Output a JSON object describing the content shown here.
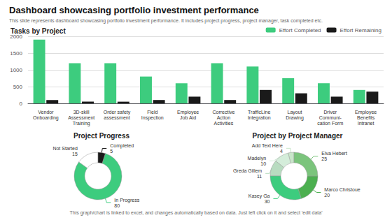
{
  "title": "Dashboard showcasing portfolio investment performance",
  "subtitle": "This slide represents dashboard showcasing portfolio investment performance. It includes project progress, project manager, task completed etc.",
  "annotations": [
    "This graph/chart is linked to excel, and changes automatically based on data. Just left click on it and select 'edit data'"
  ],
  "chart_data": [
    {
      "type": "pie",
      "title": "Project Progress",
      "categories": [
        "Not Started",
        "In Progress",
        "Completed"
      ],
      "values": [
        15,
        80,
        5
      ],
      "colors": [
        "#ffffff",
        "#3dcc7e",
        "#1a1a1a"
      ],
      "data_labels": true
    },
    {
      "type": "bar",
      "title": "Tasks by Project",
      "categories": [
        "Vendor\nOnboarding",
        "3D-skill\nAssessment\nTraining",
        "Order safety\nassessment",
        "Field\nInspection",
        "Employee\nJob Aid",
        "Corrective\nAction\nActivities",
        "TrafficLine\nIntegration",
        "Layout\nDrawing",
        "Driver\nCommuni-\ncation Form",
        "Employee\nBenefits\nIntranet"
      ],
      "series": [
        {
          "name": "Effort Completed",
          "color": "#3dcc7e",
          "values": [
            1900,
            1200,
            1200,
            800,
            600,
            1200,
            1100,
            750,
            600,
            400
          ]
        },
        {
          "name": "Effort Remaining",
          "color": "#1a1a1a",
          "values": [
            100,
            50,
            50,
            100,
            200,
            100,
            400,
            300,
            200,
            350
          ]
        }
      ],
      "ylim": [
        0,
        2000
      ],
      "yticks": [
        0,
        500,
        1000,
        1500,
        2000
      ],
      "grid": true,
      "legend": "upper right"
    },
    {
      "type": "pie",
      "title": "Project by Project Manager",
      "categories": [
        "Add Text Here",
        "Madelyn",
        "Greda Gillem",
        "Kasey Ga",
        "Marco Christoue",
        "Elva Hebert"
      ],
      "values": [
        4,
        10,
        11,
        30,
        20,
        25
      ],
      "colors": [
        "#c8e6c9",
        "#d4edda",
        "#b8dcc0",
        "#3dcc7e",
        "#4caf50",
        "#7bc47c"
      ],
      "data_labels": true
    }
  ]
}
